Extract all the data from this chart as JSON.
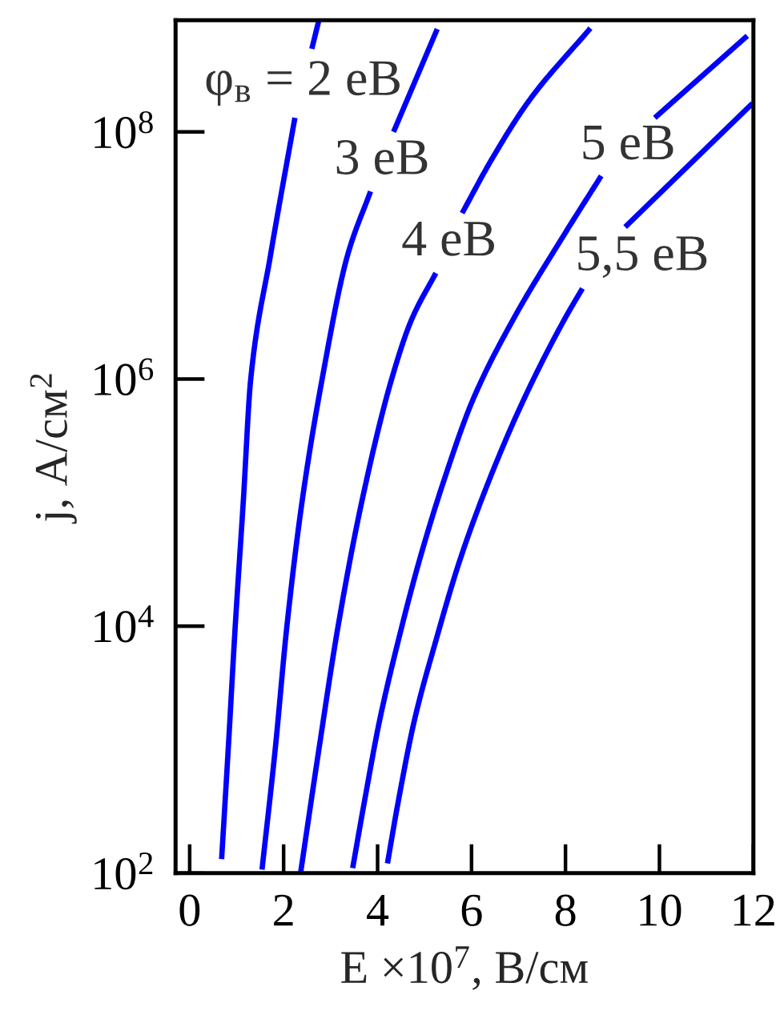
{
  "chart_data": {
    "type": "line",
    "xlabel": "E ×10$^{7}$, В/см",
    "ylabel": "j, А/см$^{2}$",
    "log": true,
    "marker": "none",
    "line_style": "solid",
    "xlim": [
      -0.3,
      12
    ],
    "xticks": [
      0,
      2,
      4,
      6,
      8,
      10,
      12
    ],
    "ylim": [
      100,
      800000000
    ],
    "yticks": [
      {
        "value": 100,
        "label": "10$^{2}$"
      },
      {
        "value": 10000,
        "label": "10$^{4}$"
      },
      {
        "value": 1000000,
        "label": "10$^{6}$"
      },
      {
        "value": 100000000,
        "label": "10$^{8}$"
      }
    ],
    "series": [
      {
        "name": "φ$_{в}$ = 2 еВ",
        "color": "#0000ff",
        "x": [
          0.68,
          0.82,
          0.97,
          1.14,
          1.3,
          1.72,
          2.24,
          2.42,
          2.6,
          2.75
        ],
        "values": [
          130,
          1000,
          10000,
          100000,
          1000000,
          10000000,
          130000000,
          null,
          470000000,
          800000000
        ]
      },
      {
        "name": "3 еВ",
        "color": "#0000ff",
        "x": [
          1.54,
          1.82,
          2.07,
          2.39,
          2.82,
          3.36,
          3.85,
          4.1,
          4.34,
          5.27
        ],
        "values": [
          107,
          1000,
          10000,
          100000,
          1000000,
          10000000,
          33000000,
          null,
          100000000,
          680000000
        ]
      },
      {
        "name": "4 еВ",
        "color": "#0000ff",
        "x": [
          2.36,
          2.75,
          3.16,
          3.66,
          4.3,
          4.72,
          5.24,
          5.5,
          5.8,
          6.43,
          7.23,
          8.53
        ],
        "values": [
          100,
          1000,
          10000,
          100000,
          1000000,
          3000000,
          7200000,
          null,
          22000000,
          60000000,
          180000000,
          690000000
        ]
      },
      {
        "name": "5 еВ",
        "color": "#0000ff",
        "x": [
          3.47,
          3.72,
          4.04,
          4.44,
          4.89,
          5.41,
          6.03,
          6.88,
          7.91,
          8.76,
          9.3,
          9.9,
          11.87
        ],
        "values": [
          110,
          380,
          1700,
          7600,
          34000,
          150000,
          680000,
          3000000,
          13500000,
          44000000,
          null,
          130000000,
          600000000
        ]
      },
      {
        "name": "5,5 еВ",
        "color": "#0000ff",
        "x": [
          4.21,
          4.44,
          4.78,
          5.24,
          5.75,
          6.37,
          7.11,
          7.97,
          8.36,
          8.8,
          9.27,
          11.98
        ],
        "values": [
          120,
          380,
          1700,
          7600,
          34000,
          150000,
          680000,
          3000000,
          5400000,
          null,
          17000000,
          170000000
        ]
      }
    ]
  }
}
